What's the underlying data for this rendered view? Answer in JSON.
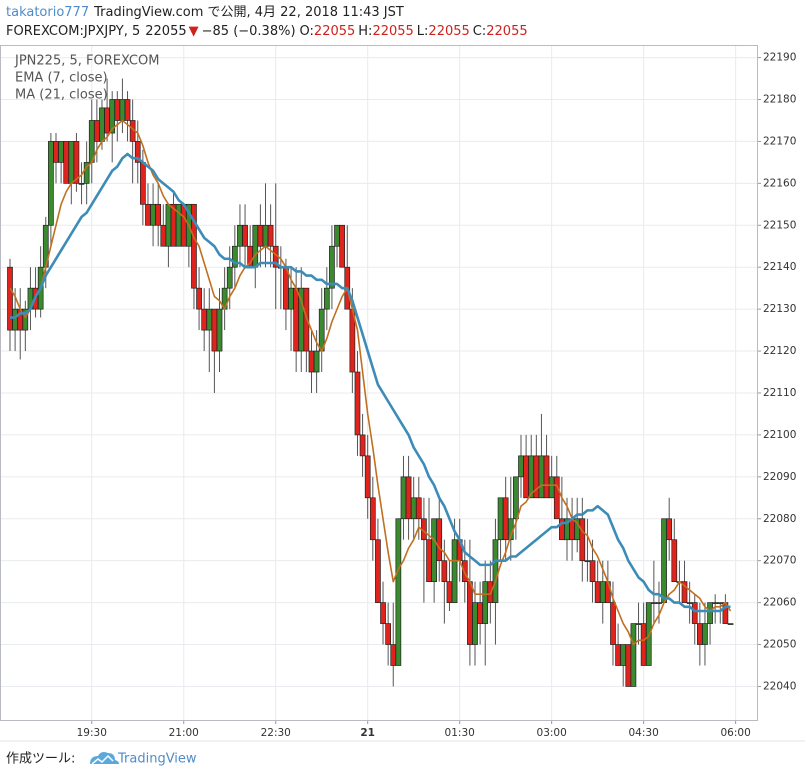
{
  "header": {
    "author": "takatorio777",
    "published": "TradingView.com で公開, 4月 22, 2018 11:43 JST",
    "symbol": "FOREXCOM:JPXJPY, 5",
    "last": "22055",
    "arrow": "▼",
    "change": "−85 (−0.38%)",
    "ohlc": [
      {
        "label": "O:",
        "value": "22055"
      },
      {
        "label": "H:",
        "value": "22055"
      },
      {
        "label": "L:",
        "value": "22055"
      },
      {
        "label": "C:",
        "value": "22055"
      }
    ]
  },
  "footer": {
    "label": "作成ツール:",
    "brand": "TradingView"
  },
  "chart_data": {
    "type": "candlestick",
    "categories": [
      null,
      null,
      null,
      null,
      null,
      null,
      null,
      null,
      null,
      null,
      null,
      null,
      null,
      null,
      null,
      null,
      "19:30",
      null,
      null,
      null,
      null,
      null,
      null,
      null,
      null,
      null,
      null,
      null,
      null,
      null,
      null,
      null,
      null,
      null,
      "21:00",
      null,
      null,
      null,
      null,
      null,
      null,
      null,
      null,
      null,
      null,
      null,
      null,
      null,
      null,
      null,
      null,
      null,
      "22:30",
      null,
      null,
      null,
      null,
      null,
      null,
      null,
      null,
      null,
      null,
      null,
      null,
      null,
      null,
      null,
      null,
      null,
      "21",
      null,
      null,
      null,
      null,
      null,
      null,
      null,
      null,
      null,
      null,
      null,
      null,
      null,
      null,
      null,
      null,
      null,
      "01:30",
      null,
      null,
      null,
      null,
      null,
      null,
      null,
      null,
      null,
      null,
      null,
      null,
      null,
      null,
      null,
      null,
      null,
      "03:00",
      null,
      null,
      null,
      null,
      null,
      null,
      null,
      null,
      null,
      null,
      null,
      null,
      null,
      null,
      null,
      null,
      null,
      "04:30",
      null,
      null,
      null,
      null,
      null,
      null,
      null,
      null,
      null,
      null,
      null,
      null,
      null,
      null,
      null,
      null,
      null,
      "06:00"
    ],
    "series": [
      {
        "name": "JPN225, 5, FOREXCOM",
        "up_color": "#3b8a30",
        "down_color": "#e0241d",
        "open": [
          22140,
          22125,
          22130,
          22125,
          22130,
          22135,
          22130,
          22140,
          22150,
          22170,
          22165,
          22170,
          22160,
          22170,
          22160,
          22160,
          22165,
          22175,
          22170,
          22178,
          22172,
          22180,
          22175,
          22180,
          22175,
          22170,
          22165,
          22155,
          22150,
          22155,
          22150,
          22145,
          22155,
          22145,
          22155,
          22145,
          22155,
          22135,
          22130,
          22125,
          22130,
          22120,
          22130,
          22135,
          22140,
          22145,
          22150,
          22145,
          22140,
          22150,
          22145,
          22150,
          22145,
          22140,
          22140,
          22130,
          22135,
          22120,
          22135,
          22120,
          22115,
          22120,
          22130,
          22135,
          22145,
          22150,
          22140,
          22130,
          22115,
          22100,
          22095,
          22085,
          22075,
          22060,
          22055,
          22050,
          22045,
          22080,
          22090,
          22080,
          22085,
          22080,
          22075,
          22065,
          22080,
          22070,
          22065,
          22060,
          22075,
          22070,
          22065,
          22050,
          22060,
          22055,
          22065,
          22060,
          22075,
          22085,
          22075,
          22080,
          22090,
          22095,
          22085,
          22095,
          22085,
          22095,
          22085,
          22090,
          22080,
          22075,
          22080,
          22075,
          22080,
          22070,
          22070,
          22065,
          22060,
          22065,
          22060,
          22050,
          22045,
          22050,
          22040,
          22055,
          22055,
          22045,
          22060,
          22060,
          22060,
          22080,
          22075,
          22065,
          22065,
          22060,
          22060,
          22055,
          22050,
          22055,
          22060,
          22060,
          22060,
          22055,
          null
        ],
        "high": [
          22142,
          22135,
          22135,
          22132,
          22140,
          22140,
          22145,
          22152,
          22172,
          22172,
          22170,
          22170,
          22170,
          22172,
          22165,
          22170,
          22180,
          22180,
          22180,
          22185,
          22182,
          22182,
          22185,
          22182,
          22180,
          22175,
          22168,
          22160,
          22160,
          22160,
          22155,
          22155,
          22158,
          22155,
          22155,
          22155,
          22155,
          22140,
          22135,
          22135,
          22130,
          22135,
          22140,
          22145,
          22150,
          22155,
          22155,
          22150,
          22150,
          22155,
          22160,
          22155,
          22160,
          22145,
          22142,
          22140,
          22140,
          22140,
          22135,
          22125,
          22125,
          22135,
          22140,
          22150,
          22150,
          22150,
          22150,
          22135,
          22120,
          22105,
          22100,
          22090,
          22080,
          22065,
          22060,
          22060,
          22080,
          22095,
          22095,
          22090,
          22090,
          22085,
          22085,
          22080,
          22085,
          22075,
          22070,
          22080,
          22080,
          22075,
          22075,
          22065,
          22065,
          22070,
          22070,
          22080,
          22085,
          22090,
          22090,
          22090,
          22100,
          22100,
          22100,
          22100,
          22105,
          22100,
          22095,
          22095,
          22090,
          22085,
          22085,
          22085,
          22085,
          22080,
          22075,
          22070,
          22070,
          22070,
          22065,
          22055,
          22050,
          22050,
          22055,
          22060,
          22060,
          22060,
          22070,
          22065,
          22080,
          22085,
          22080,
          22070,
          22070,
          22065,
          22062,
          22060,
          22060,
          22060,
          22062,
          22060,
          22062,
          22055,
          null
        ],
        "low": [
          22120,
          22120,
          22118,
          22120,
          22125,
          22128,
          22128,
          22135,
          22145,
          22160,
          22160,
          22160,
          22155,
          22158,
          22155,
          22155,
          22160,
          22165,
          22168,
          22170,
          22165,
          22170,
          22172,
          22170,
          22160,
          22160,
          22150,
          22150,
          22145,
          22145,
          22145,
          22140,
          22145,
          22145,
          22145,
          22140,
          22130,
          22125,
          22120,
          22115,
          22110,
          22115,
          22125,
          22130,
          22135,
          22140,
          22140,
          22140,
          22135,
          22140,
          22140,
          22140,
          22130,
          22130,
          22125,
          22120,
          22115,
          22115,
          22115,
          22110,
          22110,
          22115,
          22125,
          22130,
          22140,
          22140,
          22130,
          22110,
          22095,
          22090,
          22080,
          22070,
          22060,
          22050,
          22045,
          22040,
          22045,
          22075,
          22075,
          22075,
          22075,
          22060,
          22065,
          22060,
          22065,
          22055,
          22058,
          22060,
          22065,
          22060,
          22045,
          22045,
          22050,
          22045,
          22055,
          22050,
          22070,
          22070,
          22070,
          22075,
          22085,
          22085,
          22085,
          22085,
          22085,
          22085,
          22085,
          22080,
          22075,
          22070,
          22070,
          22072,
          22065,
          22065,
          22060,
          22060,
          22055,
          22060,
          22045,
          22045,
          22040,
          22040,
          22040,
          22050,
          22045,
          22045,
          22055,
          22055,
          22060,
          22070,
          22065,
          22060,
          22060,
          22055,
          22050,
          22045,
          22045,
          22050,
          22055,
          22055,
          22055,
          22055,
          null
        ],
        "close": [
          22125,
          22130,
          22125,
          22130,
          22135,
          22130,
          22140,
          22150,
          22170,
          22165,
          22170,
          22160,
          22170,
          22160,
          22160,
          22165,
          22175,
          22170,
          22178,
          22172,
          22180,
          22175,
          22180,
          22175,
          22170,
          22165,
          22155,
          22150,
          22155,
          22150,
          22145,
          22155,
          22145,
          22155,
          22145,
          22155,
          22135,
          22130,
          22125,
          22130,
          22120,
          22130,
          22135,
          22140,
          22145,
          22150,
          22145,
          22140,
          22150,
          22145,
          22150,
          22145,
          22140,
          22140,
          22130,
          22135,
          22120,
          22135,
          22120,
          22115,
          22120,
          22130,
          22135,
          22145,
          22150,
          22140,
          22130,
          22115,
          22100,
          22095,
          22085,
          22075,
          22060,
          22055,
          22050,
          22045,
          22080,
          22090,
          22080,
          22085,
          22080,
          22075,
          22065,
          22080,
          22070,
          22065,
          22060,
          22075,
          22070,
          22065,
          22050,
          22060,
          22055,
          22065,
          22060,
          22075,
          22085,
          22075,
          22080,
          22090,
          22095,
          22085,
          22095,
          22085,
          22095,
          22085,
          22090,
          22080,
          22075,
          22080,
          22075,
          22080,
          22070,
          22070,
          22065,
          22060,
          22065,
          22060,
          22050,
          22045,
          22050,
          22040,
          22055,
          22055,
          22045,
          22060,
          22060,
          22060,
          22080,
          22075,
          22065,
          22065,
          22060,
          22060,
          22055,
          22050,
          22055,
          22060,
          22060,
          22060,
          22055,
          22055,
          null
        ]
      },
      {
        "name": "EMA (7, close)",
        "color": "#c0701f",
        "values": [
          22135,
          22133,
          22130,
          22128,
          22130,
          22133,
          22135,
          22140,
          22145,
          22150,
          22155,
          22158,
          22160,
          22161,
          22162,
          22164,
          22165,
          22168,
          22170,
          22171,
          22173,
          22174,
          22175,
          22174,
          22173,
          22172,
          22169,
          22165,
          22162,
          22160,
          22157,
          22155,
          22154,
          22153,
          22152,
          22150,
          22147,
          22145,
          22141,
          22137,
          22133,
          22132,
          22130,
          22133,
          22135,
          22138,
          22140,
          22141,
          22143,
          22144,
          22145,
          22144,
          22143,
          22142,
          22140,
          22137,
          22135,
          22132,
          22128,
          22125,
          22122,
          22120,
          22123,
          22127,
          22130,
          22133,
          22135,
          22130,
          22125,
          22115,
          22105,
          22097,
          22088,
          22080,
          22072,
          22065,
          22068,
          22070,
          22073,
          22075,
          22078,
          22077,
          22076,
          22075,
          22073,
          22072,
          22070,
          22070,
          22070,
          22067,
          22065,
          22062,
          22062,
          22062,
          22062,
          22065,
          22069,
          22072,
          22076,
          22079,
          22083,
          22084,
          22086,
          22087,
          22088,
          22088,
          22088,
          22088,
          22085,
          22083,
          22080,
          22079,
          22077,
          22076,
          22073,
          22071,
          22068,
          22065,
          22061,
          22058,
          22055,
          22053,
          22050,
          22051,
          22051,
          22052,
          22055,
          22057,
          22060,
          22062,
          22063,
          22065,
          22064,
          22063,
          22062,
          22061,
          22059,
          22058,
          22059,
          22059,
          22060,
          22058,
          null
        ]
      },
      {
        "name": "MA (21, close)",
        "color": "#3d8cb8",
        "values": [
          22128,
          22128,
          22129,
          22129,
          22130,
          22133,
          22135,
          22138,
          22140,
          22142,
          22144,
          22146,
          22148,
          22150,
          22152,
          22153,
          22155,
          22157,
          22159,
          22161,
          22163,
          22164,
          22166,
          22167,
          22166,
          22166,
          22165,
          22164,
          22163,
          22161,
          22160,
          22159,
          22158,
          22156,
          22155,
          22153,
          22151,
          22149,
          22147,
          22146,
          22145,
          22143,
          22142,
          22142,
          22141,
          22141,
          22140,
          22140,
          22140,
          22141,
          22141,
          22141,
          22141,
          22140,
          22140,
          22140,
          22139,
          22139,
          22138,
          22138,
          22137,
          22137,
          22136,
          22136,
          22136,
          22135,
          22135,
          22132,
          22128,
          22124,
          22120,
          22116,
          22112,
          22110,
          22108,
          22106,
          22104,
          22102,
          22100,
          22097,
          22095,
          22093,
          22090,
          22088,
          22085,
          22083,
          22080,
          22077,
          22075,
          22072,
          22071,
          22070,
          22069,
          22069,
          22069,
          22070,
          22070,
          22070,
          22071,
          22071,
          22072,
          22073,
          22074,
          22075,
          22076,
          22077,
          22078,
          22078,
          22079,
          22079,
          22080,
          22081,
          22081,
          22082,
          22082,
          22083,
          22082,
          22081,
          22078,
          22075,
          22073,
          22070,
          22068,
          22066,
          22065,
          22063,
          22062,
          22062,
          22061,
          22061,
          22060,
          22060,
          22059,
          22059,
          22058,
          22058,
          22058,
          22058,
          22058,
          22058,
          22059,
          22059,
          null
        ]
      }
    ],
    "ylim": [
      22032,
      22193
    ],
    "yticks": [
      22040,
      22050,
      22060,
      22070,
      22080,
      22090,
      22100,
      22110,
      22120,
      22130,
      22140,
      22150,
      22160,
      22170,
      22180,
      22190
    ],
    "grid": true,
    "legend": "top-left"
  }
}
